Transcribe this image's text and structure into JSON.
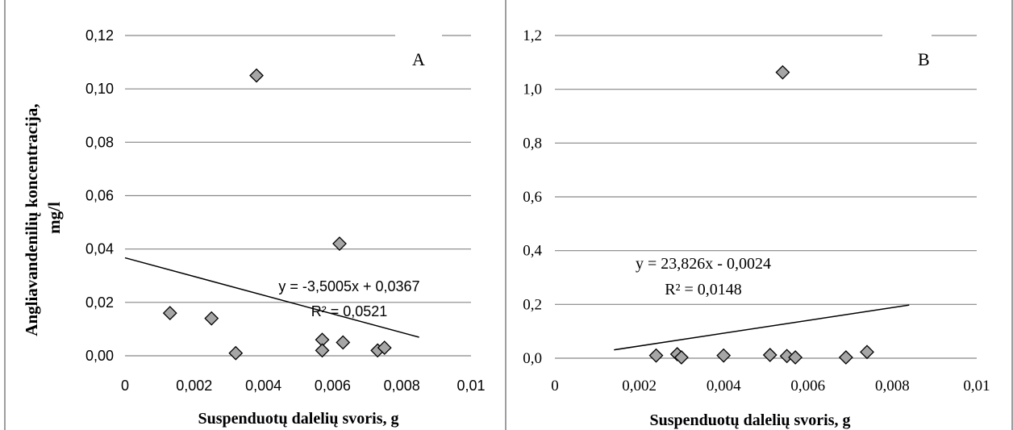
{
  "chart_data": [
    {
      "type": "scatter",
      "panel_label": "A",
      "xlabel": "Suspenduotų dalelių svoris, g",
      "ylabel": "Angliavandenilių koncentracija, mg/l",
      "xlim": [
        0,
        0.01
      ],
      "ylim": [
        0,
        0.12
      ],
      "x_ticks": [
        0,
        0.002,
        0.004,
        0.006,
        0.008,
        0.01
      ],
      "x_tick_labels": [
        "0",
        "0,002",
        "0,004",
        "0,006",
        "0,008",
        "0,01"
      ],
      "y_ticks": [
        0,
        0.02,
        0.04,
        0.06,
        0.08,
        0.1,
        0.12
      ],
      "y_tick_labels": [
        "0,00",
        "0,02",
        "0,04",
        "0,06",
        "0,08",
        "0,10",
        "0,12"
      ],
      "grid": "horizontal",
      "points": [
        {
          "x": 0.0013,
          "y": 0.016
        },
        {
          "x": 0.0025,
          "y": 0.014
        },
        {
          "x": 0.0032,
          "y": 0.001
        },
        {
          "x": 0.0038,
          "y": 0.105
        },
        {
          "x": 0.0057,
          "y": 0.006
        },
        {
          "x": 0.0057,
          "y": 0.002
        },
        {
          "x": 0.0062,
          "y": 0.042
        },
        {
          "x": 0.0063,
          "y": 0.005
        },
        {
          "x": 0.0073,
          "y": 0.002
        },
        {
          "x": 0.0075,
          "y": 0.003
        }
      ],
      "trendline": {
        "slope": -3.5005,
        "intercept": 0.0367,
        "x_range": [
          0,
          0.0085
        ]
      },
      "equation_label": "y = -3,5005x + 0,0367",
      "r2_label": "R² = 0,0521",
      "marker_color": "#a6a6a6"
    },
    {
      "type": "scatter",
      "panel_label": "B",
      "xlabel": "Suspenduotų dalelių svoris, g",
      "ylabel": "",
      "xlim": [
        0,
        0.01
      ],
      "ylim": [
        0,
        1.2
      ],
      "x_ticks": [
        0,
        0.002,
        0.004,
        0.006,
        0.008,
        0.01
      ],
      "x_tick_labels": [
        "0",
        "0,002",
        "0,004",
        "0,006",
        "0,008",
        "0,01"
      ],
      "y_ticks": [
        0,
        0.2,
        0.4,
        0.6,
        0.8,
        1.0,
        1.2
      ],
      "y_tick_labels": [
        "0,0",
        "0,2",
        "0,4",
        "0,6",
        "0,8",
        "1,0",
        "1,2"
      ],
      "grid": "horizontal",
      "points": [
        {
          "x": 0.0024,
          "y": 0.01
        },
        {
          "x": 0.0029,
          "y": 0.015
        },
        {
          "x": 0.003,
          "y": 0.003
        },
        {
          "x": 0.004,
          "y": 0.01
        },
        {
          "x": 0.0051,
          "y": 0.012
        },
        {
          "x": 0.0054,
          "y": 1.063
        },
        {
          "x": 0.0055,
          "y": 0.008
        },
        {
          "x": 0.0057,
          "y": 0.003
        },
        {
          "x": 0.0069,
          "y": 0.003
        },
        {
          "x": 0.0074,
          "y": 0.023
        }
      ],
      "trendline": {
        "slope": 23.826,
        "intercept": -0.0024,
        "x_range": [
          0.0014,
          0.0084
        ]
      },
      "equation_label": "y = 23,826x - 0,0024",
      "r2_label": "R² = 0,0148",
      "marker_color": "#a6a6a6"
    }
  ]
}
